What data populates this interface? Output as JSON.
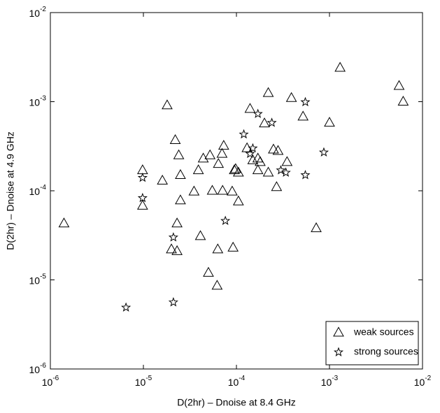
{
  "chart_data": {
    "type": "scatter",
    "x_label": "D(2hr) – Dnoise at 8.4 GHz",
    "y_label": "D(2hr) – Dnoise at 4.9 GHz",
    "log_x": true,
    "log_y": true,
    "xlim": [
      1e-06,
      0.01
    ],
    "ylim": [
      1e-06,
      0.01
    ],
    "xticks": [
      {
        "value": 1e-06,
        "label": "10^-6"
      },
      {
        "value": 1e-05,
        "label": "10^-5"
      },
      {
        "value": 0.0001,
        "label": "10^-4"
      },
      {
        "value": 0.001,
        "label": "10^-3"
      },
      {
        "value": 0.01,
        "label": "10^-2"
      }
    ],
    "yticks": [
      {
        "value": 1e-06,
        "label": "10^-6"
      },
      {
        "value": 1e-05,
        "label": "10^-5"
      },
      {
        "value": 0.0001,
        "label": "10^-4"
      },
      {
        "value": 0.001,
        "label": "10^-3"
      },
      {
        "value": 0.01,
        "label": "10^-2"
      }
    ],
    "grid": false,
    "legend": "lower right",
    "series": [
      {
        "name": "weak sources",
        "marker": "triangle",
        "color": "#000000",
        "x": [
          1.4e-06,
          9.8e-06,
          9.8e-06,
          1.6e-05,
          2.2e-05,
          2.4e-05,
          1.8e-05,
          2.5e-05,
          2.3e-05,
          2e-05,
          2.3e-05,
          2.5e-05,
          3.5e-05,
          3.9e-05,
          4.1e-05,
          5e-05,
          4.4e-05,
          5.2e-05,
          6.2e-05,
          5.5e-05,
          6.4e-05,
          6.3e-05,
          7.1e-05,
          7e-05,
          7.3e-05,
          9.2e-05,
          9e-05,
          9.5e-05,
          9.8e-05,
          0.000105,
          0.00013,
          0.000105,
          0.00014,
          0.00015,
          0.00017,
          0.00017,
          0.00018,
          0.00022,
          0.00022,
          0.0002,
          0.00025,
          0.00027,
          0.00028,
          0.00052,
          0.00035,
          0.00039,
          0.00072,
          0.001,
          0.0013,
          0.0056,
          0.0062
        ],
        "values": [
          4.3e-05,
          0.00017,
          6.8e-05,
          0.00013,
          0.00037,
          0.00025,
          0.00091,
          0.00015,
          4.3e-05,
          2.2e-05,
          2.1e-05,
          7.8e-05,
          9.8e-05,
          0.00017,
          3.1e-05,
          1.2e-05,
          0.00023,
          0.00025,
          8.6e-06,
          0.0001,
          0.0002,
          2.2e-05,
          0.0001,
          0.00026,
          0.00032,
          2.3e-05,
          9.8e-05,
          0.00017,
          0.000175,
          0.00016,
          0.0003,
          7.6e-05,
          0.00083,
          0.00022,
          0.00023,
          0.00017,
          0.00021,
          0.00016,
          0.00125,
          0.00057,
          0.00029,
          0.00011,
          0.00028,
          0.00068,
          0.00021,
          0.0011,
          3.8e-05,
          0.00058,
          0.0024,
          0.0015,
          0.001
        ]
      },
      {
        "name": "strong sources",
        "marker": "star",
        "color": "#000000",
        "x": [
          6.5e-06,
          9.8e-06,
          9.8e-06,
          2.1e-05,
          2.1e-05,
          7.6e-05,
          0.00012,
          0.00014,
          0.00015,
          0.00017,
          0.00024,
          0.0003,
          0.00034,
          0.00055,
          0.00055,
          0.00087
        ],
        "values": [
          4.9e-06,
          0.00014,
          8.3e-05,
          3e-05,
          5.6e-06,
          4.6e-05,
          0.00043,
          0.00026,
          0.0003,
          0.00073,
          0.00058,
          0.00017,
          0.00016,
          0.00099,
          0.00015,
          0.00027
        ]
      }
    ]
  }
}
